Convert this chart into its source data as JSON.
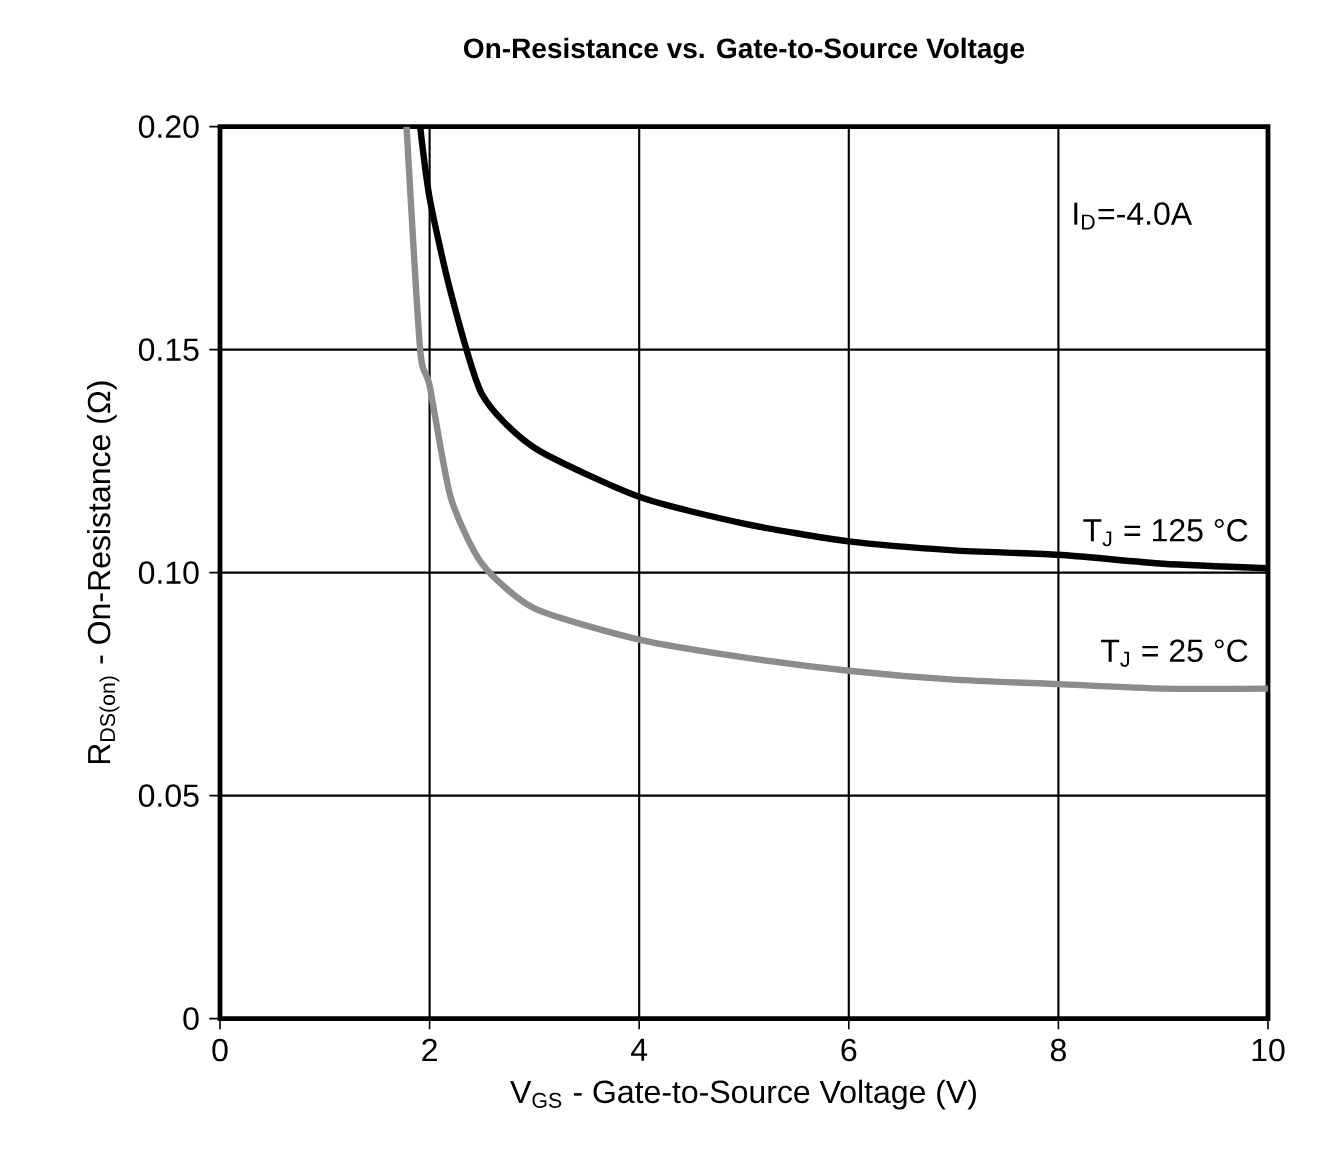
{
  "chart_data": {
    "type": "line",
    "title": "**On-Resistance vs. Gate-to-Source Voltage**",
    "xlabel": "V$_{GS}$ - Gate-to-Source Voltage (V)",
    "ylabel": "R$_{DS(on)}$ - On-Resistance (Ω)",
    "annotations": [
      "I$_{D}$=-4.0A"
    ],
    "xlim": [
      0,
      10
    ],
    "xticks": [
      0,
      2,
      4,
      6,
      8,
      10
    ],
    "ylim": [
      0,
      0.2
    ],
    "yticks": [
      0,
      0.05,
      {
        "value": 0.1,
        "label": "0.10"
      },
      0.15,
      {
        "value": 0.2,
        "label": "0.20"
      }
    ],
    "grid": true,
    "marker": "none",
    "line_style": "solid",
    "series": [
      {
        "name": "T$_{J}$ = 125 °C",
        "color": "#000000",
        "x": [
          1.91,
          2.0,
          2.2,
          2.5,
          3.0,
          4.0,
          5.0,
          6.0,
          7.0,
          8.0,
          9.0,
          10.0
        ],
        "values": [
          0.2,
          0.184,
          0.163,
          0.14,
          0.128,
          0.117,
          0.111,
          0.107,
          0.105,
          0.104,
          0.102,
          0.101
        ]
      },
      {
        "name": "T$_{J}$ = 25 °C",
        "color": "#8c8c8c",
        "x": [
          1.78,
          1.91,
          2.0,
          2.2,
          2.5,
          3.0,
          4.0,
          5.0,
          6.0,
          7.0,
          8.0,
          9.0,
          10.0
        ],
        "values": [
          0.2,
          0.15,
          0.142,
          0.117,
          0.102,
          0.092,
          0.085,
          0.081,
          0.078,
          0.076,
          0.075,
          0.074,
          0.074
        ]
      }
    ]
  }
}
